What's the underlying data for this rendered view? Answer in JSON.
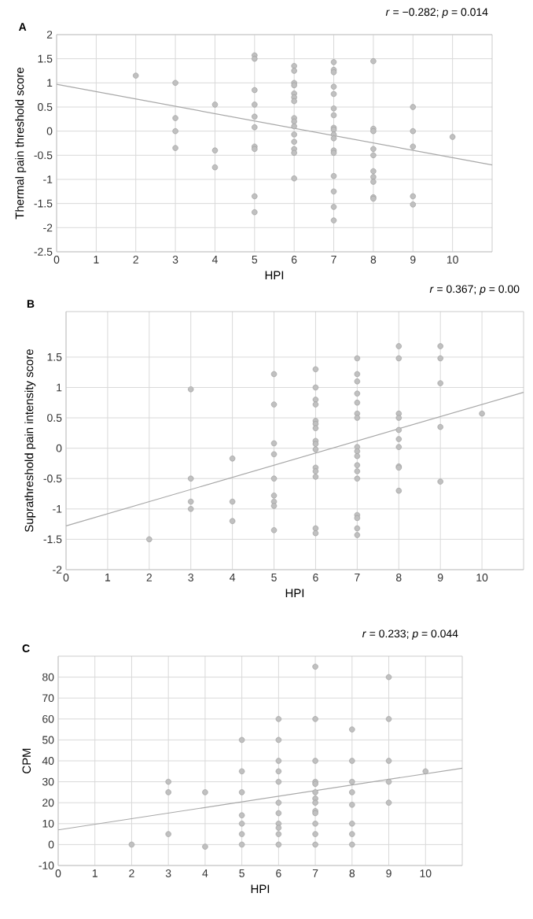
{
  "chart_data": [
    {
      "type": "scatter",
      "title": "*r* = −0.282; *p* = 0.014",
      "xlabel": "HPI",
      "ylabel": "Thermal pain threshold score",
      "annotations": [
        "A"
      ],
      "xlim": [
        0,
        11
      ],
      "xticks": [
        0,
        1,
        2,
        3,
        4,
        5,
        6,
        7,
        8,
        9,
        10
      ],
      "ylim": [
        -2.5,
        2
      ],
      "yticks": [
        -2.5,
        -2,
        -1.5,
        -1,
        -0.5,
        0,
        0.5,
        1,
        1.5,
        2
      ],
      "grid": true,
      "series": [
        {
          "marker": "circle",
          "color": "#c0c0c0",
          "x": [
            2,
            3,
            3,
            3,
            3,
            4,
            4,
            4,
            5,
            5,
            5,
            5,
            5,
            5,
            5,
            5,
            5,
            5,
            6,
            6,
            6,
            6,
            6,
            6,
            6,
            6,
            6,
            6,
            6,
            6,
            6,
            6,
            6,
            7,
            7,
            7,
            7,
            7,
            7,
            7,
            7,
            7,
            7,
            7,
            7,
            7,
            7,
            7,
            7,
            7,
            8,
            8,
            8,
            8,
            8,
            8,
            8,
            8,
            8,
            8,
            9,
            9,
            9,
            9,
            9,
            10
          ],
          "values": [
            1.15,
            1.0,
            0.27,
            0.0,
            -0.35,
            0.55,
            -0.4,
            -0.75,
            1.57,
            1.5,
            0.85,
            0.55,
            0.3,
            0.08,
            -0.32,
            -0.37,
            -1.35,
            -1.68,
            1.35,
            1.25,
            1.0,
            0.95,
            0.78,
            0.7,
            0.62,
            0.27,
            0.2,
            0.1,
            -0.07,
            -0.22,
            -0.37,
            -0.45,
            -0.98,
            1.43,
            1.27,
            1.22,
            0.92,
            0.77,
            0.47,
            0.33,
            0.07,
            0.03,
            -0.07,
            -0.15,
            -0.4,
            -0.45,
            -0.93,
            -1.25,
            -1.57,
            -1.85,
            1.45,
            0.05,
            0.0,
            -0.37,
            -0.5,
            -0.83,
            -0.95,
            -1.05,
            -1.37,
            -1.4,
            0.5,
            0.0,
            -0.32,
            -1.35,
            -1.52,
            -0.12
          ]
        },
        {
          "type": "line",
          "color": "#a8a8a8",
          "x": [
            0,
            11
          ],
          "values": [
            0.97,
            -0.7
          ]
        }
      ]
    },
    {
      "type": "scatter",
      "title": "*r* = 0.367; *p* = 0.00",
      "xlabel": "HPI",
      "ylabel": "Suprathreshold pain intensity score",
      "annotations": [
        "B"
      ],
      "xlim": [
        0,
        11
      ],
      "xticks": [
        0,
        1,
        2,
        3,
        4,
        5,
        6,
        7,
        8,
        9,
        10
      ],
      "ylim": [
        -2,
        2.25
      ],
      "yticks": [
        -2,
        -1.5,
        -1,
        -0.5,
        0,
        0.5,
        1,
        1.5
      ],
      "grid": true,
      "series": [
        {
          "marker": "circle",
          "color": "#c0c0c0",
          "x": [
            2,
            3,
            3,
            3,
            3,
            4,
            4,
            4,
            5,
            5,
            5,
            5,
            5,
            5,
            5,
            5,
            5,
            6,
            6,
            6,
            6,
            6,
            6,
            6,
            6,
            6,
            6,
            6,
            6,
            6,
            6,
            6,
            7,
            7,
            7,
            7,
            7,
            7,
            7,
            7,
            7,
            7,
            7,
            7,
            7,
            7,
            7,
            7,
            7,
            8,
            8,
            8,
            8,
            8,
            8,
            8,
            8,
            8,
            8,
            9,
            9,
            9,
            9,
            9,
            10
          ],
          "values": [
            -1.5,
            0.97,
            -0.5,
            -0.88,
            -1.0,
            -0.17,
            -0.88,
            -1.2,
            1.22,
            0.72,
            0.08,
            -0.1,
            -0.5,
            -0.78,
            -0.88,
            -0.95,
            -1.35,
            1.3,
            1.0,
            0.8,
            0.72,
            0.45,
            0.4,
            0.33,
            0.12,
            0.07,
            -0.02,
            -0.32,
            -0.38,
            -0.47,
            -1.32,
            -1.4,
            1.48,
            1.22,
            1.1,
            0.9,
            0.75,
            0.57,
            0.5,
            0.02,
            -0.05,
            -0.13,
            -0.28,
            -0.38,
            -0.5,
            -1.1,
            -1.15,
            -1.32,
            -1.43,
            1.68,
            1.48,
            0.57,
            0.5,
            0.3,
            0.15,
            0.02,
            -0.3,
            -0.32,
            -0.7,
            1.68,
            1.48,
            1.07,
            0.35,
            -0.55,
            0.57
          ]
        },
        {
          "type": "line",
          "color": "#a8a8a8",
          "x": [
            0,
            11
          ],
          "values": [
            -1.28,
            0.92
          ]
        }
      ]
    },
    {
      "type": "scatter",
      "title": "*r* = 0.233; *p* = 0.044",
      "xlabel": "HPI",
      "ylabel": "CPM",
      "annotations": [
        "C"
      ],
      "xlim": [
        0,
        11
      ],
      "xticks": [
        0,
        1,
        2,
        3,
        4,
        5,
        6,
        7,
        8,
        9,
        10
      ],
      "ylim": [
        -10,
        90
      ],
      "yticks": [
        -10,
        0,
        10,
        20,
        30,
        40,
        50,
        60,
        70,
        80
      ],
      "grid": true,
      "series": [
        {
          "marker": "circle",
          "color": "#c0c0c0",
          "x": [
            2,
            3,
            3,
            3,
            4,
            4,
            5,
            5,
            5,
            5,
            5,
            5,
            5,
            6,
            6,
            6,
            6,
            6,
            6,
            6,
            6,
            6,
            6,
            6,
            7,
            7,
            7,
            7,
            7,
            7,
            7,
            7,
            7,
            7,
            7,
            7,
            7,
            8,
            8,
            8,
            8,
            8,
            8,
            8,
            8,
            9,
            9,
            9,
            9,
            9,
            10
          ],
          "values": [
            0,
            30,
            25,
            5,
            25,
            -1,
            50,
            35,
            25,
            14,
            10,
            5,
            0,
            60,
            50,
            40,
            35,
            30,
            20,
            15,
            10,
            8,
            5,
            0,
            85,
            60,
            40,
            30,
            29,
            25,
            22,
            20,
            16,
            15,
            10,
            5,
            0,
            55,
            40,
            30,
            25,
            19,
            10,
            5,
            0,
            80,
            60,
            40,
            30,
            20,
            35
          ]
        },
        {
          "type": "line",
          "color": "#a8a8a8",
          "x": [
            0,
            11
          ],
          "values": [
            7,
            36.5
          ]
        }
      ]
    }
  ]
}
